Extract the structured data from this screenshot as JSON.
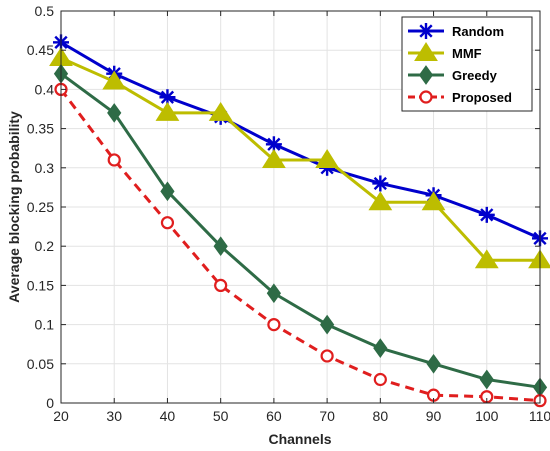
{
  "chart_data": {
    "type": "line",
    "title": "",
    "xlabel": "Channels",
    "ylabel": "Average blocking probability",
    "x": [
      20,
      30,
      40,
      50,
      60,
      70,
      80,
      90,
      100,
      110
    ],
    "xlim": [
      20,
      110
    ],
    "ylim": [
      0,
      0.5
    ],
    "xticks": [
      "20",
      "30",
      "40",
      "50",
      "60",
      "70",
      "80",
      "90",
      "100",
      "110"
    ],
    "yticks": [
      "0",
      "0.05",
      "0.1",
      "0.15",
      "0.2",
      "0.25",
      "0.3",
      "0.35",
      "0.4",
      "0.45",
      "0.5"
    ],
    "grid": true,
    "legend_position": "top-right",
    "series": [
      {
        "name": "Random",
        "values": [
          0.46,
          0.42,
          0.39,
          0.365,
          0.33,
          0.3,
          0.28,
          0.265,
          0.24,
          0.21
        ],
        "color": "#0000CC",
        "marker": "asterisk",
        "line": "solid"
      },
      {
        "name": "MMF",
        "values": [
          0.44,
          0.41,
          0.37,
          0.37,
          0.31,
          0.31,
          0.256,
          0.256,
          0.182,
          0.182
        ],
        "color": "#BDBD00",
        "marker": "triangle",
        "line": "solid"
      },
      {
        "name": "Greedy",
        "values": [
          0.42,
          0.37,
          0.27,
          0.2,
          0.14,
          0.1,
          0.07,
          0.05,
          0.03,
          0.02
        ],
        "color": "#2E6B46",
        "marker": "diamond",
        "line": "solid"
      },
      {
        "name": "Proposed",
        "values": [
          0.4,
          0.31,
          0.23,
          0.15,
          0.1,
          0.06,
          0.03,
          0.01,
          0.008,
          0.003
        ],
        "color": "#E01E1E",
        "marker": "circle",
        "line": "dashed"
      }
    ]
  }
}
